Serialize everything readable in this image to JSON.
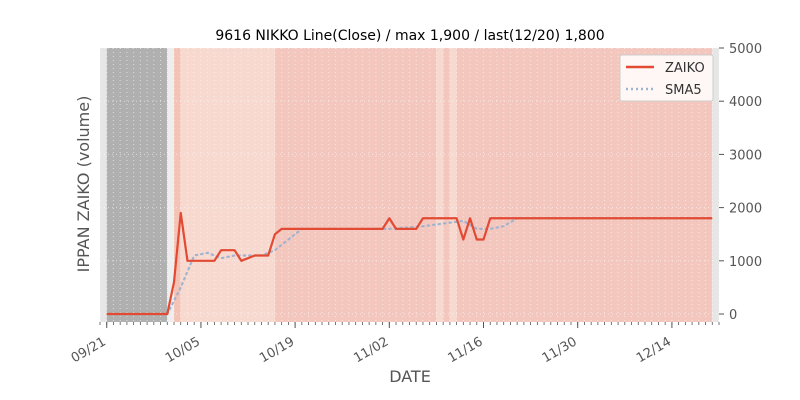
{
  "chart_data": {
    "type": "line",
    "title": "9616 NIKKO Line(Close) / max 1,900 / last(12/20) 1,800",
    "xlabel": "DATE",
    "ylabel": "IPPAN ZAIKO (volume)",
    "y_axis_side": "right",
    "ylim": [
      -150,
      5000
    ],
    "yticks": [
      0,
      1000,
      2000,
      3000,
      4000,
      5000
    ],
    "ytick_labels": [
      "0",
      "1000",
      "2000",
      "3000",
      "4000",
      "5000"
    ],
    "xlim": [
      "2020-09-20",
      "2020-12-21"
    ],
    "xticks": [
      "2020-09-21",
      "2020-10-05",
      "2020-10-19",
      "2020-11-02",
      "2020-11-16",
      "2020-11-30",
      "2020-12-14"
    ],
    "xtick_labels": [
      "09/21",
      "10/05",
      "10/19",
      "11/02",
      "11/16",
      "11/30",
      "12/14"
    ],
    "grid": true,
    "legend": "top-right",
    "series": [
      {
        "name": "ZAIKO",
        "color": "#e24a33",
        "style": "solid",
        "points": [
          [
            "2020-09-21",
            0
          ],
          [
            "2020-09-30",
            0
          ],
          [
            "2020-10-01",
            600
          ],
          [
            "2020-10-02",
            1900
          ],
          [
            "2020-10-03",
            1000
          ],
          [
            "2020-10-05",
            1000
          ],
          [
            "2020-10-07",
            1000
          ],
          [
            "2020-10-08",
            1200
          ],
          [
            "2020-10-10",
            1200
          ],
          [
            "2020-10-11",
            1000
          ],
          [
            "2020-10-13",
            1100
          ],
          [
            "2020-10-15",
            1100
          ],
          [
            "2020-10-16",
            1500
          ],
          [
            "2020-10-17",
            1600
          ],
          [
            "2020-11-01",
            1600
          ],
          [
            "2020-11-02",
            1800
          ],
          [
            "2020-11-03",
            1600
          ],
          [
            "2020-11-06",
            1600
          ],
          [
            "2020-11-07",
            1800
          ],
          [
            "2020-11-12",
            1800
          ],
          [
            "2020-11-13",
            1400
          ],
          [
            "2020-11-14",
            1800
          ],
          [
            "2020-11-15",
            1400
          ],
          [
            "2020-11-16",
            1400
          ],
          [
            "2020-11-17",
            1800
          ],
          [
            "2020-12-20",
            1800
          ]
        ]
      },
      {
        "name": "SMA5",
        "color": "#9fb4d0",
        "style": "dotted",
        "points": [
          [
            "2020-09-30",
            0
          ],
          [
            "2020-10-02",
            500
          ],
          [
            "2020-10-04",
            1100
          ],
          [
            "2020-10-06",
            1150
          ],
          [
            "2020-10-08",
            1050
          ],
          [
            "2020-10-10",
            1100
          ],
          [
            "2020-10-12",
            1100
          ],
          [
            "2020-10-14",
            1100
          ],
          [
            "2020-10-16",
            1200
          ],
          [
            "2020-10-18",
            1400
          ],
          [
            "2020-10-20",
            1600
          ],
          [
            "2020-11-02",
            1600
          ],
          [
            "2020-11-07",
            1650
          ],
          [
            "2020-11-10",
            1700
          ],
          [
            "2020-11-13",
            1750
          ],
          [
            "2020-11-15",
            1600
          ],
          [
            "2020-11-17",
            1600
          ],
          [
            "2020-11-19",
            1650
          ],
          [
            "2020-11-21",
            1800
          ],
          [
            "2020-12-20",
            1800
          ]
        ]
      }
    ],
    "background_bands": [
      {
        "start": "2020-09-20",
        "end": "2020-09-21",
        "color": "#e6e6e6"
      },
      {
        "start": "2020-09-21",
        "end": "2020-09-30",
        "color": "#b0b0b0"
      },
      {
        "start": "2020-09-30",
        "end": "2020-10-01",
        "color": "#eeeeee"
      },
      {
        "start": "2020-10-01",
        "end": "2020-10-02",
        "color": "#f4c3b6"
      },
      {
        "start": "2020-10-02",
        "end": "2020-10-16",
        "color": "#f7d9cf"
      },
      {
        "start": "2020-10-16",
        "end": "2020-11-09",
        "color": "#f4c7be"
      },
      {
        "start": "2020-11-09",
        "end": "2020-11-10",
        "color": "#f7d9cf"
      },
      {
        "start": "2020-11-10",
        "end": "2020-11-11",
        "color": "#f4c7be"
      },
      {
        "start": "2020-11-11",
        "end": "2020-11-12",
        "color": "#f7d9cf"
      },
      {
        "start": "2020-11-12",
        "end": "2020-12-20",
        "color": "#f4c7be"
      },
      {
        "start": "2020-12-20",
        "end": "2020-12-21",
        "color": "#e6e6e6"
      }
    ]
  }
}
